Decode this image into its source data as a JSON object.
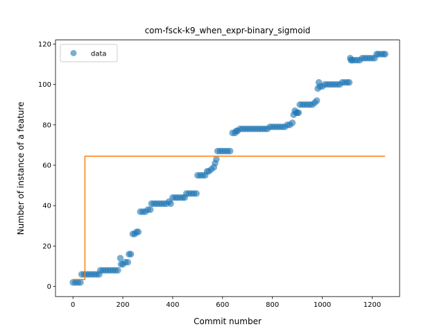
{
  "chart_data": {
    "type": "scatter",
    "title": "com-fsck-k9_when_expr-binary_sigmoid",
    "xlabel": "Commit number",
    "ylabel": "Number of instance of a feature",
    "xlim": [
      -70,
      1310
    ],
    "ylim": [
      -5,
      122
    ],
    "xticks": [
      0,
      200,
      400,
      600,
      800,
      1000,
      1200
    ],
    "yticks": [
      0,
      20,
      40,
      60,
      80,
      100,
      120
    ],
    "grid": false,
    "legend": {
      "placement": "top-left",
      "entries": [
        "data"
      ]
    },
    "colors": {
      "data": "#1f77b4",
      "fit": "#ff7f0e"
    },
    "series": [
      {
        "name": "data",
        "kind": "scatter",
        "points": [
          [
            0,
            2
          ],
          [
            10,
            2
          ],
          [
            20,
            2
          ],
          [
            30,
            2
          ],
          [
            35,
            6
          ],
          [
            45,
            6
          ],
          [
            55,
            6
          ],
          [
            65,
            6
          ],
          [
            75,
            6
          ],
          [
            85,
            6
          ],
          [
            95,
            6
          ],
          [
            105,
            6
          ],
          [
            110,
            8
          ],
          [
            120,
            8
          ],
          [
            130,
            8
          ],
          [
            140,
            8
          ],
          [
            150,
            8
          ],
          [
            160,
            8
          ],
          [
            170,
            8
          ],
          [
            180,
            8
          ],
          [
            190,
            14
          ],
          [
            193,
            11
          ],
          [
            200,
            11
          ],
          [
            210,
            12
          ],
          [
            220,
            12
          ],
          [
            225,
            16
          ],
          [
            232,
            16
          ],
          [
            240,
            26
          ],
          [
            248,
            26
          ],
          [
            255,
            27
          ],
          [
            262,
            27
          ],
          [
            270,
            37
          ],
          [
            280,
            37
          ],
          [
            290,
            37
          ],
          [
            300,
            38
          ],
          [
            310,
            38
          ],
          [
            315,
            41
          ],
          [
            325,
            41
          ],
          [
            335,
            41
          ],
          [
            345,
            41
          ],
          [
            355,
            41
          ],
          [
            365,
            41
          ],
          [
            375,
            41
          ],
          [
            385,
            42
          ],
          [
            392,
            41
          ],
          [
            400,
            44
          ],
          [
            410,
            44
          ],
          [
            420,
            44
          ],
          [
            430,
            44
          ],
          [
            440,
            44
          ],
          [
            448,
            44
          ],
          [
            455,
            46
          ],
          [
            465,
            46
          ],
          [
            475,
            46
          ],
          [
            485,
            46
          ],
          [
            495,
            46
          ],
          [
            500,
            55
          ],
          [
            510,
            55
          ],
          [
            520,
            55
          ],
          [
            530,
            55
          ],
          [
            538,
            57
          ],
          [
            545,
            57
          ],
          [
            555,
            58
          ],
          [
            565,
            59
          ],
          [
            570,
            61
          ],
          [
            575,
            63
          ],
          [
            580,
            67
          ],
          [
            590,
            67
          ],
          [
            600,
            67
          ],
          [
            610,
            67
          ],
          [
            620,
            67
          ],
          [
            630,
            67
          ],
          [
            640,
            76
          ],
          [
            650,
            76
          ],
          [
            655,
            77
          ],
          [
            660,
            77
          ],
          [
            670,
            78
          ],
          [
            680,
            78
          ],
          [
            690,
            78
          ],
          [
            700,
            78
          ],
          [
            710,
            78
          ],
          [
            720,
            78
          ],
          [
            730,
            78
          ],
          [
            740,
            78
          ],
          [
            750,
            78
          ],
          [
            760,
            78
          ],
          [
            770,
            78
          ],
          [
            780,
            78
          ],
          [
            790,
            79
          ],
          [
            800,
            79
          ],
          [
            810,
            79
          ],
          [
            820,
            79
          ],
          [
            830,
            79
          ],
          [
            840,
            79
          ],
          [
            850,
            79
          ],
          [
            860,
            80
          ],
          [
            870,
            80
          ],
          [
            880,
            81
          ],
          [
            885,
            85
          ],
          [
            890,
            87
          ],
          [
            895,
            86
          ],
          [
            900,
            86
          ],
          [
            905,
            86
          ],
          [
            910,
            90
          ],
          [
            920,
            90
          ],
          [
            930,
            90
          ],
          [
            940,
            90
          ],
          [
            950,
            90
          ],
          [
            960,
            90
          ],
          [
            970,
            91
          ],
          [
            978,
            92
          ],
          [
            982,
            98
          ],
          [
            986,
            101
          ],
          [
            990,
            99
          ],
          [
            1000,
            99
          ],
          [
            1010,
            100
          ],
          [
            1020,
            100
          ],
          [
            1030,
            100
          ],
          [
            1040,
            100
          ],
          [
            1050,
            100
          ],
          [
            1060,
            100
          ],
          [
            1070,
            100
          ],
          [
            1080,
            101
          ],
          [
            1090,
            101
          ],
          [
            1100,
            101
          ],
          [
            1108,
            101
          ],
          [
            1112,
            113
          ],
          [
            1115,
            112
          ],
          [
            1120,
            112
          ],
          [
            1130,
            112
          ],
          [
            1140,
            112
          ],
          [
            1150,
            112
          ],
          [
            1160,
            113
          ],
          [
            1170,
            113
          ],
          [
            1180,
            113
          ],
          [
            1190,
            113
          ],
          [
            1200,
            113
          ],
          [
            1210,
            113
          ],
          [
            1218,
            115
          ],
          [
            1225,
            115
          ],
          [
            1235,
            115
          ],
          [
            1245,
            115
          ],
          [
            1252,
            115
          ]
        ]
      },
      {
        "name": "",
        "kind": "step-line",
        "points": [
          [
            0,
            3.5
          ],
          [
            48,
            3.5
          ],
          [
            48,
            64.5
          ],
          [
            1252,
            64.5
          ]
        ]
      }
    ]
  }
}
